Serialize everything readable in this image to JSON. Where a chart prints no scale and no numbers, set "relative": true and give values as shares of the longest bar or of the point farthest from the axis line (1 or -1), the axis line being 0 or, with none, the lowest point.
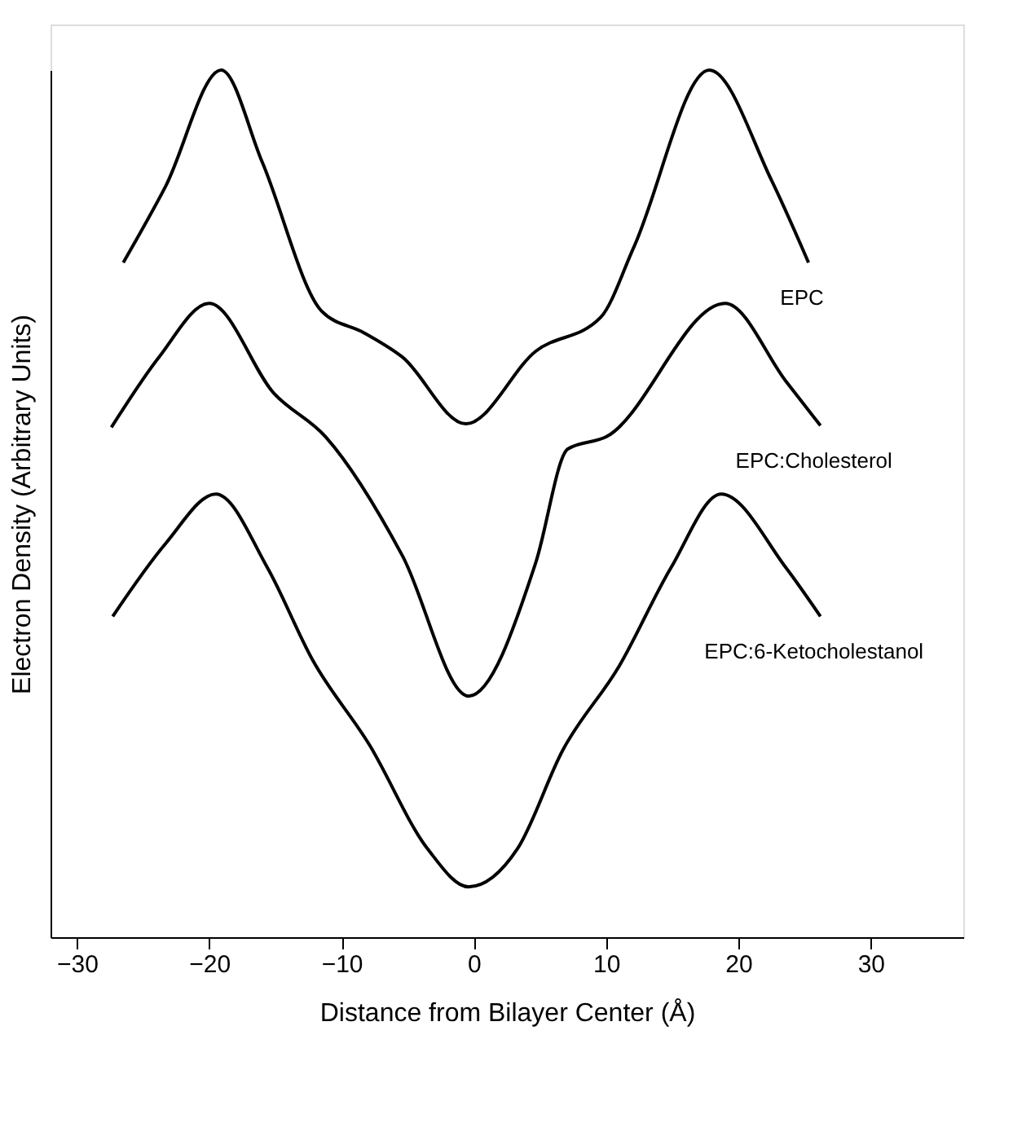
{
  "chart_data": {
    "type": "line",
    "xlabel": "Distance from Bilayer Center (Å)",
    "ylabel": "Electron Density (Arbitrary Units)",
    "relative": true,
    "xlim": [
      -32,
      37
    ],
    "xticks": [
      -30,
      -20,
      -10,
      0,
      10,
      20,
      30
    ],
    "grid": false,
    "marker": "none",
    "line_style": "solid",
    "series": [
      {
        "name": "EPC",
        "color": "#000000",
        "x": [
          -26.5,
          -23.3,
          -19.1,
          -16.0,
          -11.5,
          -8.3,
          -5.4,
          -0.6,
          4.7,
          9.6,
          12.1,
          17.8,
          22.5,
          25.3
        ],
        "values": [
          0.778,
          0.866,
          1.0,
          0.894,
          0.722,
          0.697,
          0.669,
          0.592,
          0.676,
          0.715,
          0.796,
          1.0,
          0.873,
          0.778
        ]
      },
      {
        "name": "EPC:Cholesterol",
        "color": "#000000",
        "x": [
          -27.4,
          -23.8,
          -20.0,
          -15.1,
          -11.2,
          -5.4,
          -0.4,
          4.7,
          7.1,
          10.0,
          19.0,
          23.6,
          26.2
        ],
        "values": [
          0.588,
          0.669,
          0.731,
          0.627,
          0.577,
          0.44,
          0.278,
          0.433,
          0.563,
          0.577,
          0.731,
          0.641,
          0.59
        ]
      },
      {
        "name": "EPC:6-Ketocholestanol",
        "color": "#000000",
        "x": [
          -27.3,
          -23.3,
          -19.5,
          -15.6,
          -12.2,
          -7.9,
          -3.5,
          -0.4,
          3.3,
          6.7,
          11.0,
          14.9,
          18.7,
          23.6,
          26.2
        ],
        "values": [
          0.37,
          0.454,
          0.511,
          0.426,
          0.32,
          0.222,
          0.102,
          0.058,
          0.102,
          0.215,
          0.313,
          0.426,
          0.511,
          0.426,
          0.37
        ]
      }
    ]
  }
}
